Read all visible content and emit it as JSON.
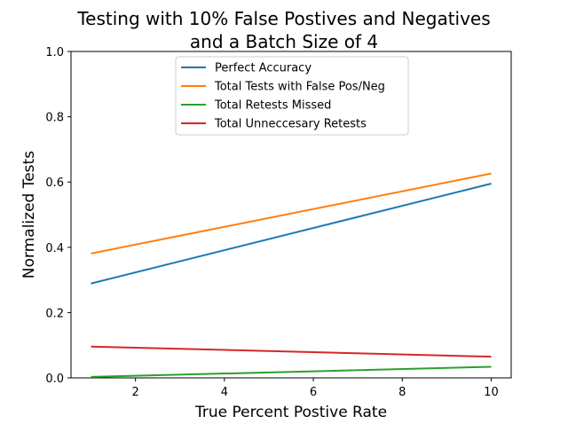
{
  "chart_data": {
    "type": "line",
    "title_lines": [
      "Testing with 10% False Postives and Negatives",
      "and a Batch Size of 4"
    ],
    "xlabel": "True Percent Postive Rate",
    "ylabel": "Normalized Tests",
    "xlim": [
      0.55,
      10.45
    ],
    "ylim": [
      0,
      1.0
    ],
    "xticks": [
      2,
      4,
      6,
      8,
      10
    ],
    "yticks": [
      0.0,
      0.2,
      0.4,
      0.6,
      0.8,
      1.0
    ],
    "ytick_labels": [
      "0.0",
      "0.2",
      "0.4",
      "0.6",
      "0.8",
      "1.0"
    ],
    "legend_position": "upper-center",
    "grid": false,
    "series": [
      {
        "name": "Perfect Accuracy",
        "color": "#1f77b4",
        "x": [
          1,
          10
        ],
        "y": [
          0.289,
          0.595
        ]
      },
      {
        "name": "Total Tests with False Pos/Neg",
        "color": "#ff7f0e",
        "x": [
          1,
          10
        ],
        "y": [
          0.381,
          0.626
        ]
      },
      {
        "name": "Total Retests Missed",
        "color": "#2ca02c",
        "x": [
          1,
          10
        ],
        "y": [
          0.003,
          0.034
        ]
      },
      {
        "name": "Total Unneccesary Retests",
        "color": "#d62728",
        "x": [
          1,
          10
        ],
        "y": [
          0.096,
          0.065
        ]
      }
    ]
  }
}
